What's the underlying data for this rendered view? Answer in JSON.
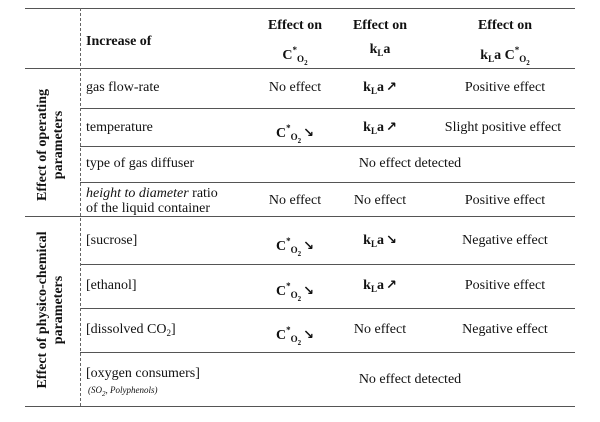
{
  "header": {
    "increase_of": "Increase of",
    "col1_label": "Effect on",
    "col1_symbol": "C",
    "col1_sup": "*",
    "col1_sub": "O",
    "col1_sub2": "2",
    "col2_label": "Effect on",
    "col2_symbol": "k",
    "col2_sub": "L",
    "col2_tail": "a",
    "col3_label": "Effect on",
    "col3_symbol": "k",
    "col3_sub": "L",
    "col3_mid": "a C",
    "col3_sup": "*",
    "col3_sub2": "O",
    "col3_sub3": "2"
  },
  "groups": {
    "operating": "Effect of operating parameters",
    "operating_line1": "Effect of operating",
    "operating_line2": "parameters",
    "physico": "Effect of physico-chemical parameters",
    "physico_line1": "Effect of physico-chemical",
    "physico_line2": "parameters"
  },
  "rows": {
    "r1": {
      "param": "gas flow-rate",
      "c1": "No effect",
      "c2_sym": "k",
      "c2_sub": "L",
      "c2_tail": "a",
      "c2_arrow": "↗",
      "c3": "Positive effect"
    },
    "r2": {
      "param": "temperature",
      "c1_sym": "C",
      "c1_sup": "*",
      "c1_sub": "O",
      "c1_sub2": "2",
      "c1_arrow": "↘",
      "c2_sym": "k",
      "c2_sub": "L",
      "c2_tail": "a",
      "c2_arrow": "↗",
      "c3": "Slight positive effect"
    },
    "r3": {
      "param": "type of gas diffuser",
      "span": "No effect detected"
    },
    "r4": {
      "param_italic": "height to diameter",
      "param_rest": " ratio",
      "param_line2": "of the liquid container",
      "c1": "No effect",
      "c2": "No effect",
      "c3": "Positive effect"
    },
    "r5": {
      "param": "[sucrose]",
      "c1_sym": "C",
      "c1_sup": "*",
      "c1_sub": "O",
      "c1_sub2": "2",
      "c1_arrow": "↘",
      "c2_sym": "k",
      "c2_sub": "L",
      "c2_tail": "a",
      "c2_arrow": "↘",
      "c3": "Negative effect"
    },
    "r6": {
      "param": "[ethanol]",
      "c1_sym": "C",
      "c1_sup": "*",
      "c1_sub": "O",
      "c1_sub2": "2",
      "c1_arrow": "↘",
      "c2_sym": "k",
      "c2_sub": "L",
      "c2_tail": "a",
      "c2_arrow": "↗",
      "c3": "Positive effect"
    },
    "r7": {
      "param": "[dissolved CO",
      "param_sub": "2",
      "param_close": "]",
      "c1_sym": "C",
      "c1_sup": "*",
      "c1_sub": "O",
      "c1_sub2": "2",
      "c1_arrow": "↘",
      "c2": "No effect",
      "c3": "Negative effect"
    },
    "r8": {
      "param": "[oxygen consumers]",
      "param_note": "(SO",
      "param_note_sub": "2",
      "param_note_rest": ", Polyphenols)",
      "span": "No effect detected"
    }
  }
}
